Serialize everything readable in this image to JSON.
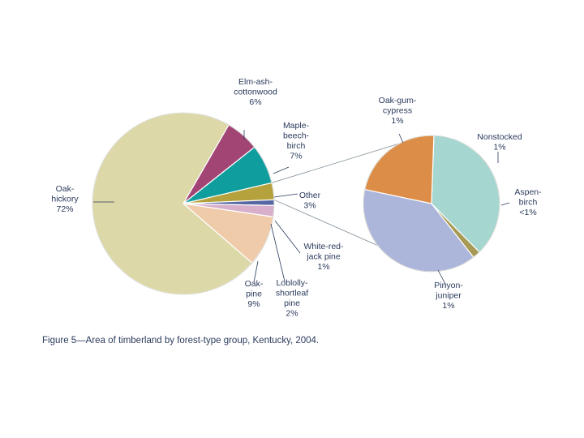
{
  "chart_data": [
    {
      "type": "pie",
      "slices": [
        {
          "label_lines": [
            "Elm-ash-",
            "cottonwood",
            "6%"
          ],
          "value": 6,
          "color": "#a24575"
        },
        {
          "label_lines": [
            "Maple-",
            "beech-",
            "birch",
            "7%"
          ],
          "value": 7,
          "color": "#0f9e9d"
        },
        {
          "label_lines": [
            "Other",
            "3%"
          ],
          "value": 3,
          "color": "#b5a23c"
        },
        {
          "label_lines": [
            "White-red-",
            "jack pine",
            "1%"
          ],
          "value": 1,
          "color": "#5567a3"
        },
        {
          "label_lines": [
            "Loblolly-",
            "shortleaf",
            "pine",
            "2%"
          ],
          "value": 2,
          "color": "#d7afcb"
        },
        {
          "label_lines": [
            "Oak-",
            "pine",
            "9%"
          ],
          "value": 9,
          "color": "#efcbaa"
        },
        {
          "label_lines": [
            "Oak-",
            "hickory",
            "72%"
          ],
          "value": 72,
          "color": "#dcd8a7"
        }
      ]
    },
    {
      "type": "pie",
      "note": "breakdown of Other",
      "slices": [
        {
          "label_lines": [
            "Nonstocked",
            "1%"
          ],
          "value": 1,
          "color": "#a5d6cf"
        },
        {
          "label_lines": [
            "Aspen-",
            "birch",
            "<1%"
          ],
          "value": 0.05,
          "color": "#a79a55"
        },
        {
          "label_lines": [
            "Pinyon-",
            "juniper",
            "1%"
          ],
          "value": 1.05,
          "color": "#acb5da"
        },
        {
          "label_lines": [
            "Oak-gum-",
            "cypress",
            "1%"
          ],
          "value": 0.6,
          "color": "#dc8d47"
        }
      ]
    }
  ],
  "caption": "Figure 5—Area of timberland by forest-type group, Kentucky, 2004."
}
